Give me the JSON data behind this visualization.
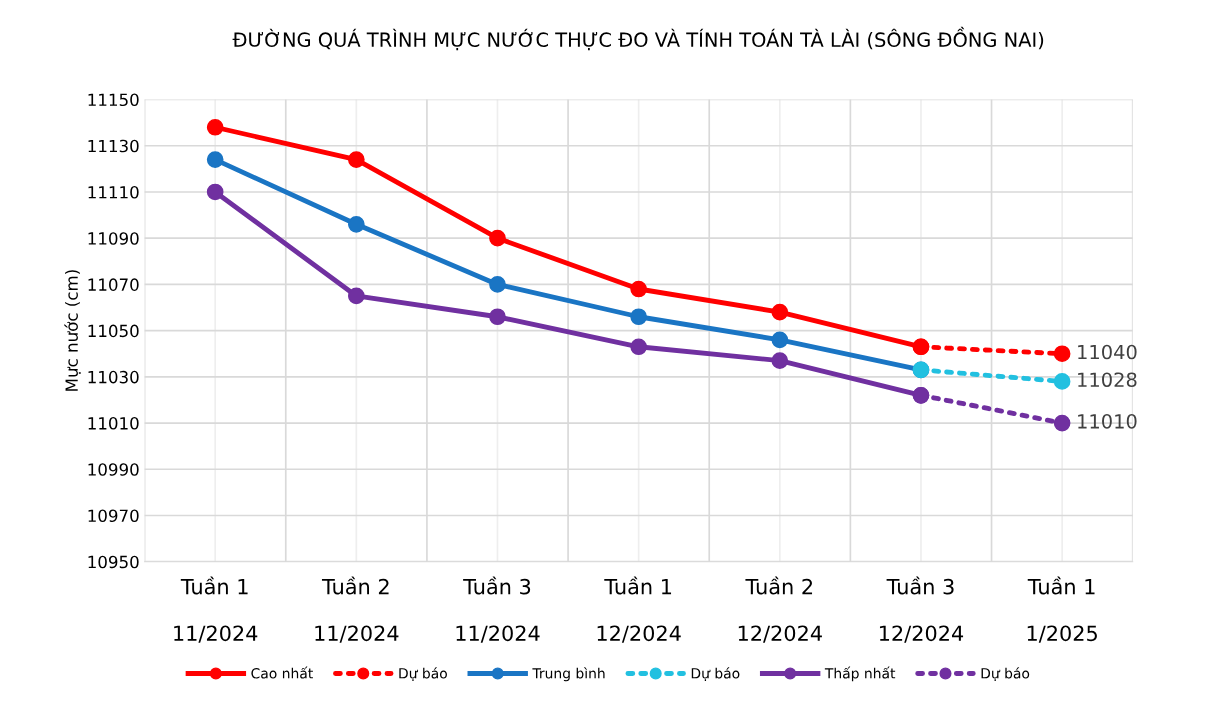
{
  "chart_data": {
    "type": "line",
    "title": "ĐƯỜNG QUÁ TRÌNH MỰC NƯỚC THỰC ĐO VÀ TÍNH TOÁN TÀ LÀI (SÔNG ĐỒNG NAI)",
    "ylabel": "Mực nước (cm)",
    "categories": [
      "Tuần 1\n\n11/2024",
      "Tuần 2\n\n11/2024",
      "Tuần 3\n\n11/2024",
      "Tuần 1\n\n12/2024",
      "Tuần 2\n\n12/2024",
      "Tuần 3\n\n12/2024",
      "Tuần 1\n\n1/2025"
    ],
    "ylim": [
      10950,
      11150
    ],
    "yticks": [
      10950,
      10970,
      10990,
      11010,
      11030,
      11050,
      11070,
      11090,
      11110,
      11130,
      11150
    ],
    "grid": true,
    "legend": "bottom",
    "marker": "circle",
    "series": [
      {
        "name": "Cao nhất",
        "color": "#ff0000",
        "line_style": "solid",
        "values": [
          11138,
          11124,
          11090,
          11068,
          11058,
          11043,
          null
        ]
      },
      {
        "name": "Dự báo",
        "color": "#ff0000",
        "line_style": "dotted",
        "values": [
          null,
          null,
          null,
          null,
          null,
          11043,
          11040
        ],
        "value_labels": [
          null,
          null,
          null,
          null,
          null,
          null,
          "11040"
        ]
      },
      {
        "name": "Trung bình",
        "color": "#1a75c4",
        "line_style": "solid",
        "values": [
          11124,
          11096,
          11070,
          11056,
          11046,
          11033,
          null
        ]
      },
      {
        "name": "Dự báo",
        "color": "#22c0e0",
        "line_style": "dotted",
        "values": [
          null,
          null,
          null,
          null,
          null,
          11033,
          11028
        ],
        "value_labels": [
          null,
          null,
          null,
          null,
          null,
          null,
          "11028"
        ]
      },
      {
        "name": "Thấp nhất",
        "color": "#7030a0",
        "line_style": "solid",
        "values": [
          11110,
          11065,
          11056,
          11043,
          11037,
          11022,
          null
        ]
      },
      {
        "name": "Dự báo",
        "color": "#7030a0",
        "line_style": "dotted",
        "values": [
          null,
          null,
          null,
          null,
          null,
          11022,
          11010
        ],
        "value_labels": [
          null,
          null,
          null,
          null,
          null,
          null,
          "11010"
        ]
      }
    ]
  }
}
